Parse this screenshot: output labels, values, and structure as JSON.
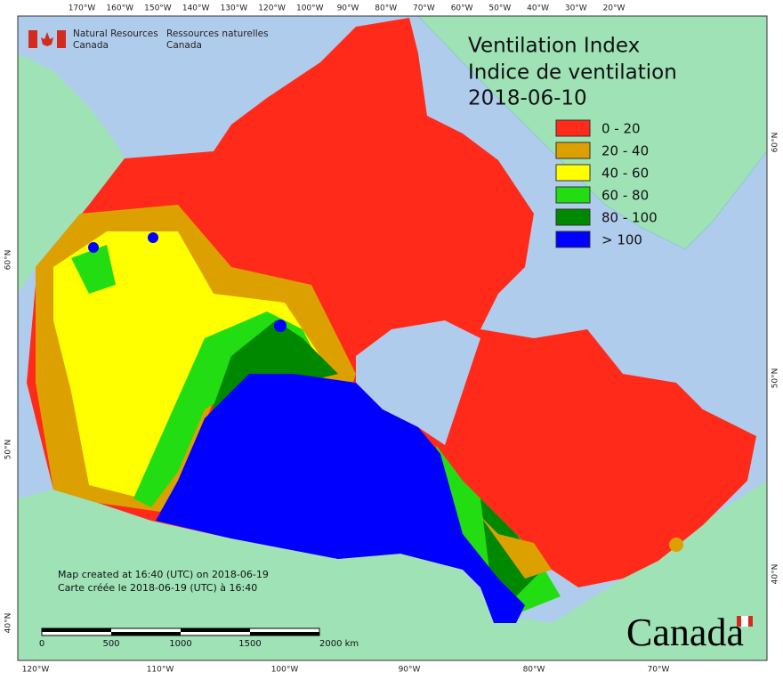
{
  "header": {
    "agency_en": [
      "Natural Resources",
      "Canada"
    ],
    "agency_fr": [
      "Ressources naturelles",
      "Canada"
    ]
  },
  "title": [
    "Ventilation Index",
    "Indice de ventilation",
    "2018-06-10"
  ],
  "legend": [
    {
      "label": "0 - 20",
      "color": "#ff2a1a"
    },
    {
      "label": "20 - 40",
      "color": "#dca000"
    },
    {
      "label": "40 - 60",
      "color": "#ffff00"
    },
    {
      "label": "60 - 80",
      "color": "#22dd11"
    },
    {
      "label": "80 - 100",
      "color": "#008800"
    },
    {
      "label": "> 100",
      "color": "#0000ff"
    }
  ],
  "graticule": {
    "top": [
      "170°W",
      "160°W",
      "150°W",
      "140°W",
      "130°W",
      "120°W",
      "100°W",
      "90°W",
      "80°W",
      "70°W",
      "60°W",
      "50°W",
      "40°W",
      "30°W",
      "20°W"
    ],
    "bottom": [
      "120°W",
      "110°W",
      "100°W",
      "90°W",
      "80°W",
      "70°W"
    ],
    "left": [
      "60°N",
      "50°N",
      "40°N"
    ],
    "right": [
      "60°N",
      "50°N",
      "40°N"
    ]
  },
  "notes": [
    "Map created at 16:40 (UTC) on 2018-06-19",
    "Carte créée le 2018-06-19 (UTC) à 16:40"
  ],
  "scale_bar": [
    "0",
    "500",
    "1000",
    "1500",
    "2000 km"
  ],
  "wordmark": "Canada"
}
